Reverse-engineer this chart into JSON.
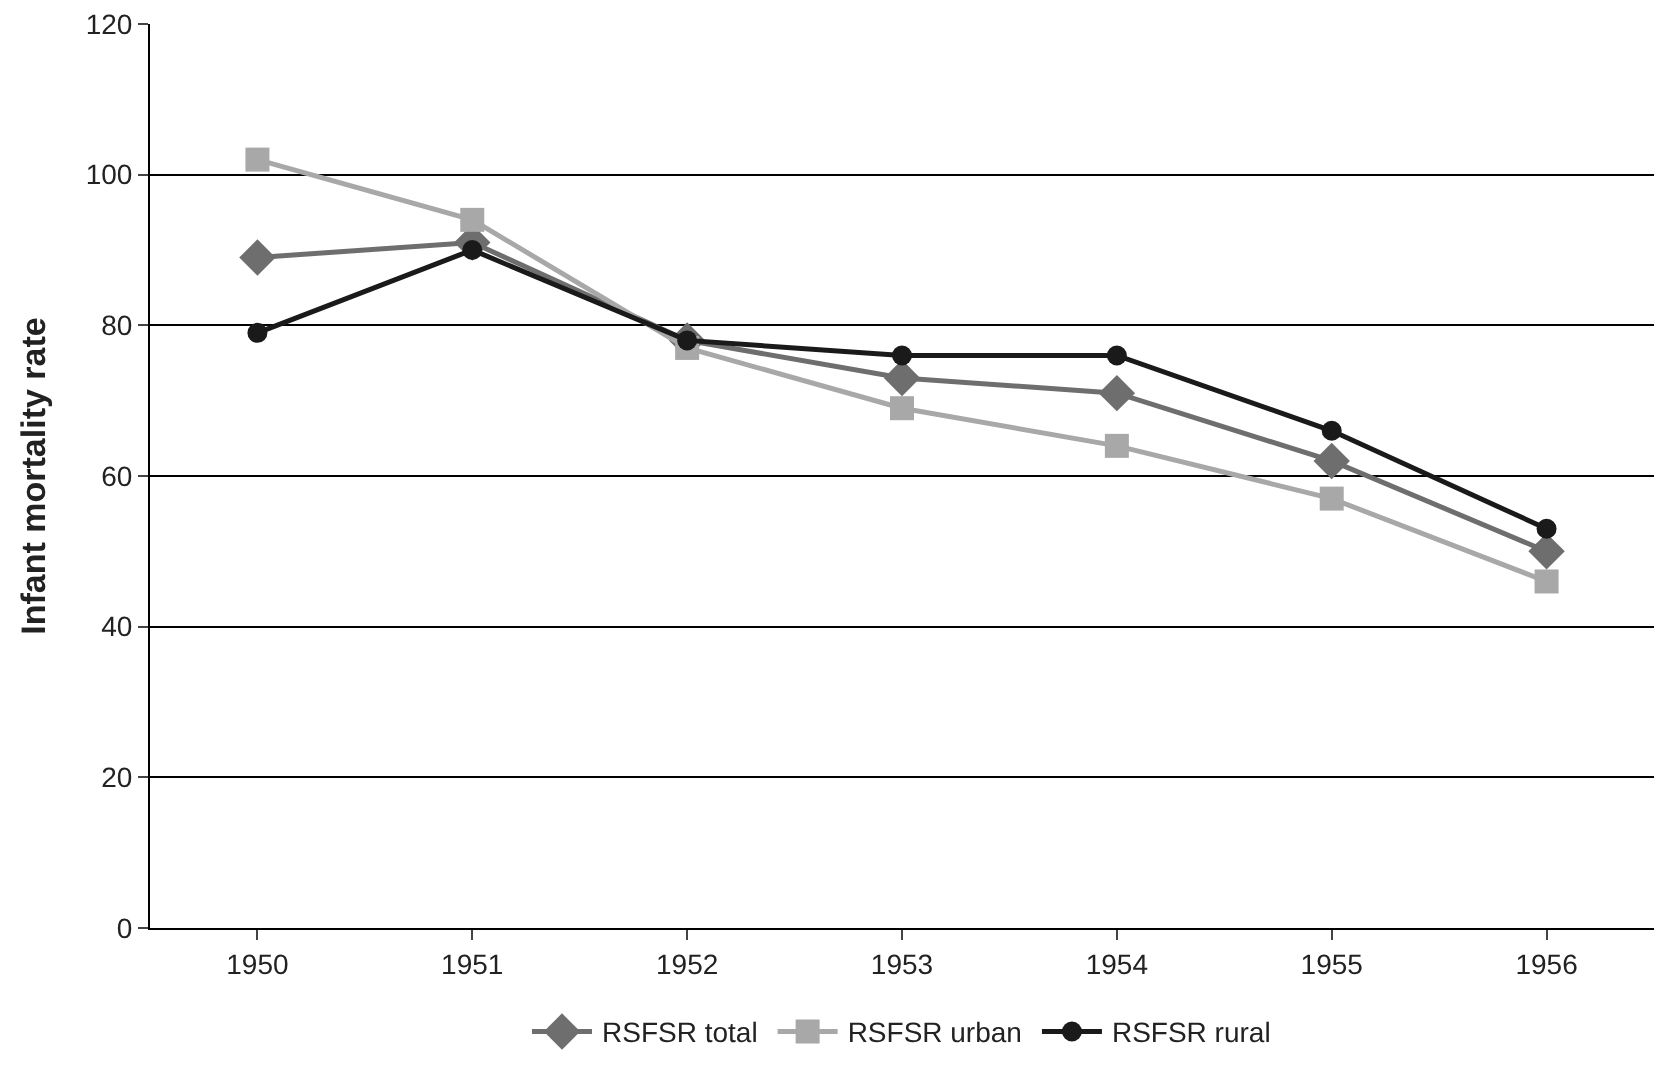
{
  "chart_data": {
    "type": "line",
    "ylabel": "Infant mortality rate",
    "categories": [
      "1950",
      "1951",
      "1952",
      "1953",
      "1954",
      "1955",
      "1956"
    ],
    "series": [
      {
        "name": "RSFSR total",
        "color": "#6e6e6e",
        "marker": "diamond",
        "values": [
          89,
          91,
          78,
          73,
          71,
          62,
          50
        ]
      },
      {
        "name": "RSFSR urban",
        "color": "#a8a8a8",
        "marker": "square",
        "values": [
          102,
          94,
          77,
          69,
          64,
          57,
          46
        ]
      },
      {
        "name": "RSFSR rural",
        "color": "#1a1a1a",
        "marker": "circle",
        "values": [
          79,
          90,
          78,
          76,
          76,
          66,
          53
        ]
      }
    ],
    "ylim": [
      0,
      120
    ],
    "yticks": [
      0,
      20,
      40,
      60,
      80,
      100,
      120
    ],
    "grid": "y",
    "legend": "bottom",
    "line_style": "solid"
  }
}
